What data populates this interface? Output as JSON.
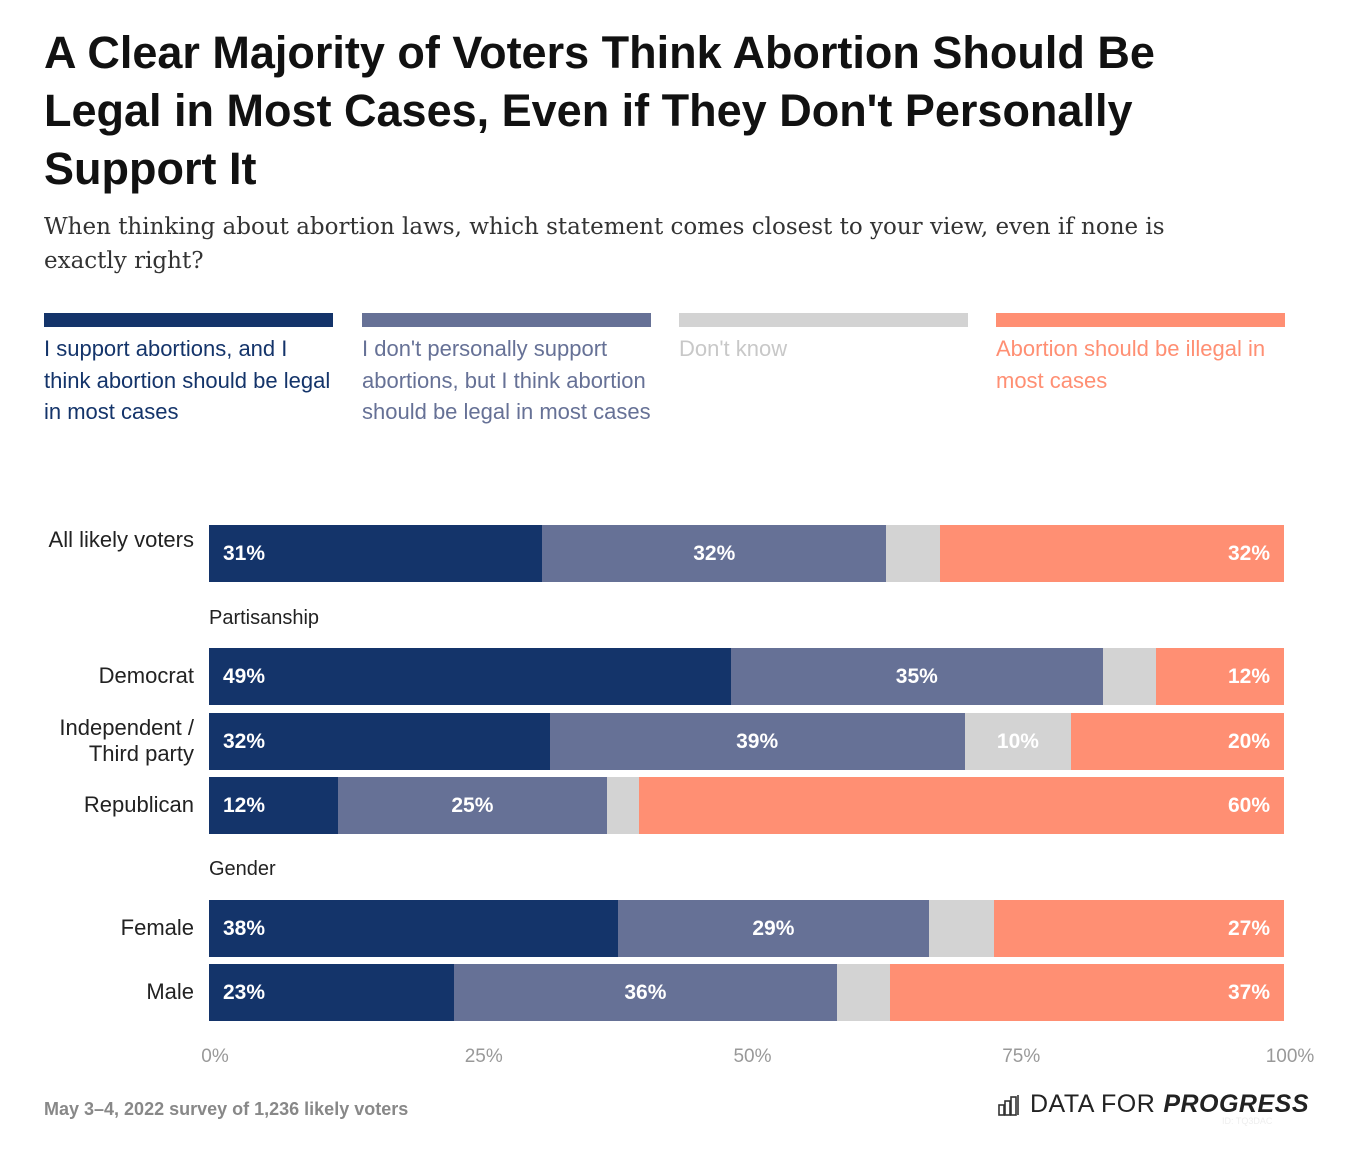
{
  "title": "A Clear Majority of Voters Think Abortion Should Be Legal in Most Cases, Even if They Don't Personally Support It",
  "subtitle": "When thinking about abortion laws, which statement comes closest to your view, even if none is exactly right?",
  "footer": "May 3–4, 2022 survey of 1,236 likely voters",
  "logo": {
    "text_light": "DATA FOR",
    "text_bold": "PROGRESS",
    "icon": "bar-chart-icon",
    "watermark": "ID: TQ3DAC"
  },
  "chart_data": {
    "type": "bar",
    "orientation": "horizontal",
    "stacked": true,
    "xlim": [
      0,
      100
    ],
    "x_ticks": [
      "0%",
      "25%",
      "50%",
      "75%",
      "100%"
    ],
    "grid": false,
    "legend_placement": "top",
    "series": [
      {
        "name": "I support abortions, and I think abortion should be legal in most cases",
        "color": "#14346a",
        "values": [
          31,
          49,
          32,
          12,
          38,
          23
        ]
      },
      {
        "name": "I don't personally support abortions, but I think abortion should be legal in most cases",
        "color": "#667196",
        "values": [
          32,
          35,
          39,
          25,
          29,
          36
        ]
      },
      {
        "name": "Don't know",
        "color": "#d3d3d3",
        "values": [
          5,
          5,
          10,
          3,
          6,
          5
        ]
      },
      {
        "name": "Abortion should be illegal in most cases",
        "color": "#ff8f73",
        "values": [
          32,
          12,
          20,
          60,
          27,
          37
        ]
      }
    ],
    "data_labels_shown": [
      [
        true,
        true,
        true,
        true,
        true,
        true
      ],
      [
        true,
        true,
        true,
        true,
        true,
        true
      ],
      [
        false,
        false,
        true,
        false,
        false,
        false
      ],
      [
        true,
        true,
        true,
        true,
        true,
        true
      ]
    ],
    "categories": [
      "All likely voters",
      "Democrat",
      "Independent / Third party",
      "Republican",
      "Female",
      "Male"
    ],
    "groups": [
      {
        "label": "",
        "categories": [
          "All likely voters"
        ]
      },
      {
        "label": "Partisanship",
        "categories": [
          "Democrat",
          "Independent / Third party",
          "Republican"
        ]
      },
      {
        "label": "Gender",
        "categories": [
          "Female",
          "Male"
        ]
      }
    ]
  }
}
